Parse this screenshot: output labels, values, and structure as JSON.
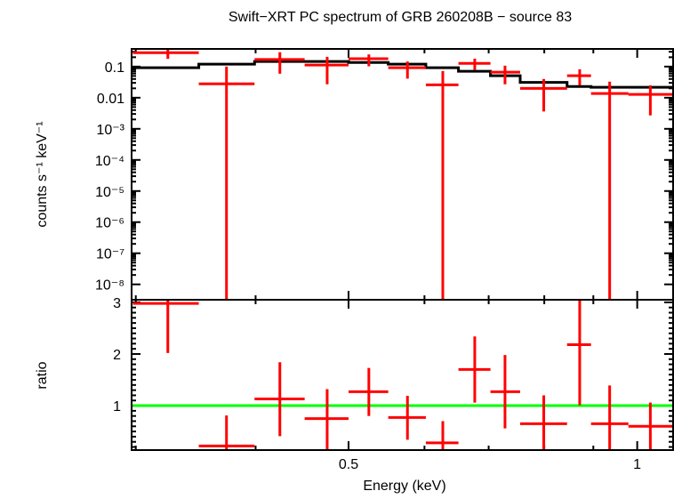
{
  "chart_data": [
    {
      "type": "scatter",
      "panel": "spectrum",
      "title": "Swift−XRT PC spectrum of GRB 260208B − source 83",
      "xlabel": "Energy (keV)",
      "ylabel": "counts s⁻¹ keV⁻¹",
      "xscale": "log",
      "yscale": "log",
      "xlim": [
        0.297,
        1.09
      ],
      "ylim": [
        3.2e-09,
        0.37
      ],
      "ytick_labels": [
        "0.1",
        "0.01",
        "10⁻³",
        "10⁻⁴",
        "10⁻⁵",
        "10⁻⁶",
        "10⁻⁷",
        "10⁻⁸"
      ],
      "ytick_values": [
        0.1,
        0.01,
        0.001,
        0.0001,
        1e-05,
        1e-06,
        1e-07,
        1e-08
      ],
      "series": [
        {
          "name": "data",
          "color": "#ff0000",
          "points": [
            {
              "xlo": 0.298,
              "xhi": 0.349,
              "x": 0.324,
              "y": 0.28,
              "ylo": 0.177,
              "yhi": 0.4
            },
            {
              "xlo": 0.349,
              "xhi": 0.399,
              "x": 0.373,
              "y": 0.028,
              "ylo": 0,
              "yhi": 0.1
            },
            {
              "xlo": 0.399,
              "xhi": 0.45,
              "x": 0.424,
              "y": 0.17,
              "ylo": 0.059,
              "yhi": 0.29
            },
            {
              "xlo": 0.45,
              "xhi": 0.5,
              "x": 0.475,
              "y": 0.112,
              "ylo": 0.027,
              "yhi": 0.206
            },
            {
              "xlo": 0.5,
              "xhi": 0.55,
              "x": 0.525,
              "y": 0.18,
              "ylo": 0.102,
              "yhi": 0.246
            },
            {
              "xlo": 0.55,
              "xhi": 0.602,
              "x": 0.576,
              "y": 0.092,
              "ylo": 0.041,
              "yhi": 0.146
            },
            {
              "xlo": 0.602,
              "xhi": 0.651,
              "x": 0.627,
              "y": 0.026,
              "ylo": 0,
              "yhi": 0.072
            },
            {
              "xlo": 0.651,
              "xhi": 0.703,
              "x": 0.677,
              "y": 0.127,
              "ylo": 0.078,
              "yhi": 0.18
            },
            {
              "xlo": 0.703,
              "xhi": 0.755,
              "x": 0.728,
              "y": 0.066,
              "ylo": 0.027,
              "yhi": 0.107
            },
            {
              "xlo": 0.755,
              "xhi": 0.845,
              "x": 0.799,
              "y": 0.02,
              "ylo": 0.0036,
              "yhi": 0.04
            },
            {
              "xlo": 0.845,
              "xhi": 0.895,
              "x": 0.871,
              "y": 0.051,
              "ylo": 0.025,
              "yhi": 0.082
            },
            {
              "xlo": 0.895,
              "xhi": 0.979,
              "x": 0.936,
              "y": 0.0136,
              "ylo": 0,
              "yhi": 0.033
            },
            {
              "xlo": 0.979,
              "xhi": 1.091,
              "x": 1.032,
              "y": 0.0128,
              "ylo": 0.0027,
              "yhi": 0.025
            }
          ]
        },
        {
          "name": "model",
          "color": "#000000",
          "type": "step",
          "values": [
            0.092,
            0.12,
            0.146,
            0.146,
            0.136,
            0.12,
            0.092,
            0.071,
            0.051,
            0.031,
            0.023,
            0.0216,
            0.0216
          ]
        }
      ]
    },
    {
      "type": "scatter",
      "panel": "ratio",
      "xlabel": "Energy (keV)",
      "ylabel": "ratio",
      "xscale": "log",
      "yscale": "linear",
      "xlim": [
        0.297,
        1.09
      ],
      "ylim": [
        0.14,
        3.05
      ],
      "xtick_labels": [
        "0.5",
        "1"
      ],
      "xtick_values": [
        0.5,
        1
      ],
      "ytick_labels": [
        "1",
        "2",
        "3"
      ],
      "ytick_values": [
        1,
        2,
        3
      ],
      "reference_line": {
        "y": 1,
        "color": "#00ff00"
      },
      "series": [
        {
          "name": "ratio",
          "color": "#ff0000",
          "points": [
            {
              "y": 2.98,
              "ylo": 2.02,
              "yhi": 4
            },
            {
              "y": 0.22,
              "ylo": 0,
              "yhi": 0.81
            },
            {
              "y": 1.13,
              "ylo": 0.41,
              "yhi": 1.84
            },
            {
              "y": 0.75,
              "ylo": 0,
              "yhi": 1.32
            },
            {
              "y": 1.27,
              "ylo": 0.8,
              "yhi": 1.73
            },
            {
              "y": 0.77,
              "ylo": 0.34,
              "yhi": 1.19
            },
            {
              "y": 0.28,
              "ylo": 0,
              "yhi": 0.7
            },
            {
              "y": 1.7,
              "ylo": 1.06,
              "yhi": 2.34
            },
            {
              "y": 1.27,
              "ylo": 0.56,
              "yhi": 1.98
            },
            {
              "y": 0.65,
              "ylo": 0,
              "yhi": 1.2
            },
            {
              "y": 2.18,
              "ylo": 1.01,
              "yhi": 4
            },
            {
              "y": 0.65,
              "ylo": 0,
              "yhi": 1.39
            },
            {
              "y": 0.6,
              "ylo": 0,
              "yhi": 1.06
            }
          ]
        }
      ]
    }
  ]
}
